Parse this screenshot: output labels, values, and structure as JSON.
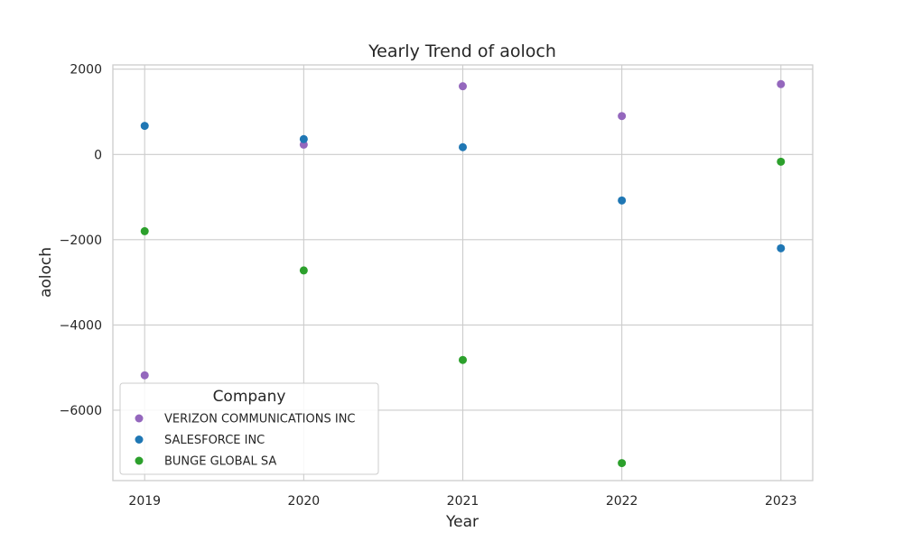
{
  "chart_data": {
    "type": "scatter",
    "title": "Yearly Trend of aoloch",
    "xlabel": "Year",
    "ylabel": "aoloch",
    "x": [
      2019,
      2020,
      2021,
      2022,
      2023
    ],
    "xlim": [
      2018.8,
      2023.2
    ],
    "ylim": [
      -7650,
      2100
    ],
    "yticks": [
      2000,
      0,
      -2000,
      -4000,
      -6000
    ],
    "ytick_labels": [
      "2000",
      "0",
      "−2000",
      "−4000",
      "−6000"
    ],
    "xtick_labels": [
      "2019",
      "2020",
      "2021",
      "2022",
      "2023"
    ],
    "grid": true,
    "legend": {
      "title": "Company",
      "placement": "lower-left"
    },
    "series": [
      {
        "name": "VERIZON COMMUNICATIONS INC",
        "color": "#9467bd",
        "values": [
          -5180,
          230,
          1600,
          900,
          1650
        ]
      },
      {
        "name": "SALESFORCE INC",
        "color": "#1f77b4",
        "values": [
          670,
          360,
          170,
          -1080,
          -2200
        ]
      },
      {
        "name": "BUNGE GLOBAL SA",
        "color": "#2ca02c",
        "values": [
          -1800,
          -2720,
          -4820,
          -7240,
          -170
        ]
      }
    ]
  }
}
